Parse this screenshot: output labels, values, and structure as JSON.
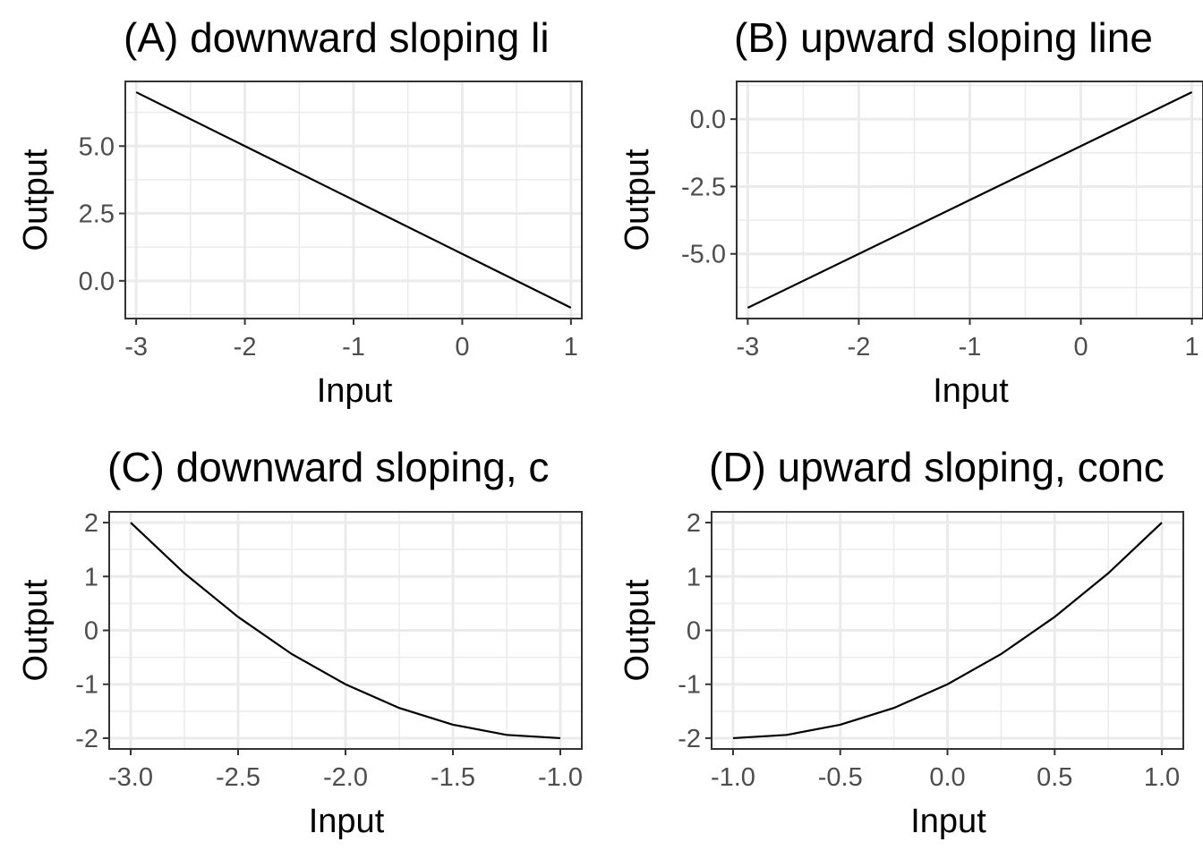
{
  "colors": {
    "background": "#ffffff",
    "panel_background": "#ffffff",
    "grid": "#ebebeb",
    "border": "#333333",
    "tick_text": "#4d4d4d",
    "line": "#000000"
  },
  "chart_data": [
    {
      "type": "line",
      "title": "(A) downward sloping li",
      "xlabel": "Input",
      "ylabel": "Output",
      "xlim": [
        -3.1,
        1.1
      ],
      "ylim": [
        -1.4,
        7.4
      ],
      "x_ticks": [
        -3,
        -2,
        -1,
        0,
        1
      ],
      "x_tick_labels": [
        "-3",
        "-2",
        "-1",
        "0",
        "1"
      ],
      "y_ticks": [
        0,
        2.5,
        5
      ],
      "y_tick_labels": [
        "0.0",
        "2.5",
        "5.0"
      ],
      "grid": true,
      "series": [
        {
          "x": [
            -3,
            -2,
            -1,
            0,
            1
          ],
          "values": [
            7,
            5,
            3,
            1,
            -1
          ]
        }
      ]
    },
    {
      "type": "line",
      "title": "(B) upward sloping line",
      "xlabel": "Input",
      "ylabel": "Output",
      "xlim": [
        -3.1,
        1.1
      ],
      "ylim": [
        -7.4,
        1.4
      ],
      "x_ticks": [
        -3,
        -2,
        -1,
        0,
        1
      ],
      "x_tick_labels": [
        "-3",
        "-2",
        "-1",
        "0",
        "1"
      ],
      "y_ticks": [
        -5,
        -2.5,
        0
      ],
      "y_tick_labels": [
        "-5.0",
        "-2.5",
        "0.0"
      ],
      "grid": true,
      "series": [
        {
          "x": [
            -3,
            -2,
            -1,
            0,
            1
          ],
          "values": [
            -7,
            -5,
            -3,
            -1,
            1
          ]
        }
      ]
    },
    {
      "type": "line",
      "title": "(C) downward sloping, c",
      "xlabel": "Input",
      "ylabel": "Output",
      "xlim": [
        -3.1,
        -0.9
      ],
      "ylim": [
        -2.2,
        2.2
      ],
      "x_ticks": [
        -3,
        -2.5,
        -2,
        -1.5,
        -1
      ],
      "x_tick_labels": [
        "-3.0",
        "-2.5",
        "-2.0",
        "-1.5",
        "-1.0"
      ],
      "y_ticks": [
        -2,
        -1,
        0,
        1,
        2
      ],
      "y_tick_labels": [
        "-2",
        "-1",
        "0",
        "1",
        "2"
      ],
      "grid": true,
      "series": [
        {
          "x": [
            -3,
            -2.75,
            -2.5,
            -2.25,
            -2,
            -1.75,
            -1.5,
            -1.25,
            -1
          ],
          "values": [
            2,
            1.06,
            0.25,
            -0.44,
            -1,
            -1.44,
            -1.75,
            -1.94,
            -2
          ]
        }
      ]
    },
    {
      "type": "line",
      "title": "(D) upward sloping, conc",
      "xlabel": "Input",
      "ylabel": "Output",
      "xlim": [
        -1.1,
        1.1
      ],
      "ylim": [
        -2.2,
        2.2
      ],
      "x_ticks": [
        -1,
        -0.5,
        0,
        0.5,
        1
      ],
      "x_tick_labels": [
        "-1.0",
        "-0.5",
        "0.0",
        "0.5",
        "1.0"
      ],
      "y_ticks": [
        -2,
        -1,
        0,
        1,
        2
      ],
      "y_tick_labels": [
        "-2",
        "-1",
        "0",
        "1",
        "2"
      ],
      "grid": true,
      "series": [
        {
          "x": [
            -1,
            -0.75,
            -0.5,
            -0.25,
            0,
            0.25,
            0.5,
            0.75,
            1
          ],
          "values": [
            -2,
            -1.94,
            -1.75,
            -1.44,
            -1,
            -0.44,
            0.25,
            1.06,
            2
          ]
        }
      ]
    }
  ]
}
